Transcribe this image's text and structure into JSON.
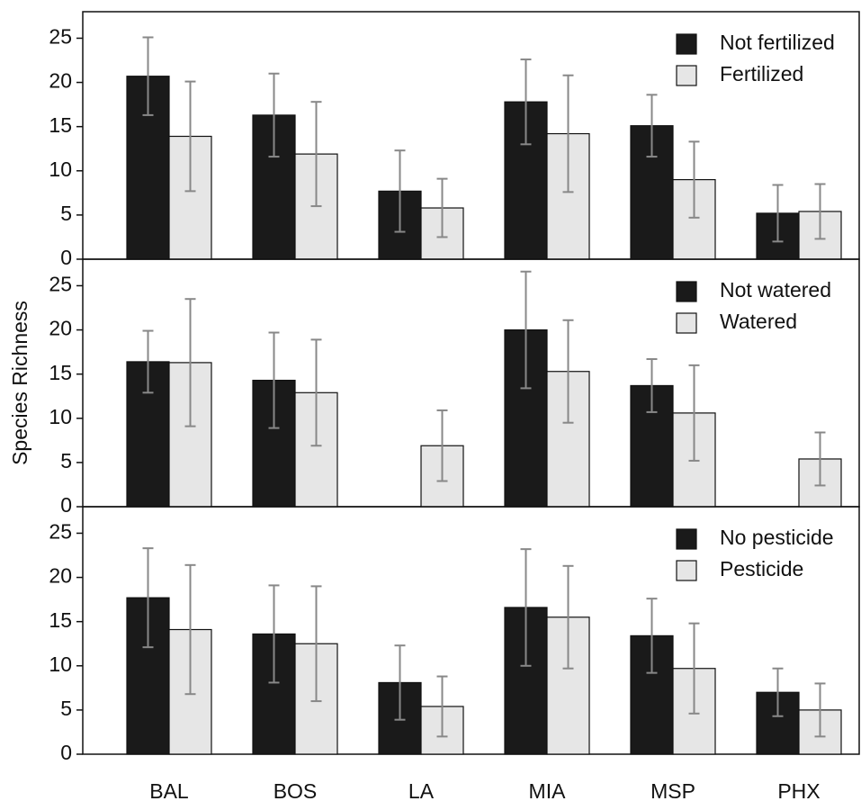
{
  "chart_data": [
    {
      "type": "bar",
      "categories": [
        "BAL",
        "BOS",
        "LA",
        "MIA",
        "MSP",
        "PHX"
      ],
      "ylim": [
        0,
        28
      ],
      "yticks": [
        0,
        5,
        10,
        15,
        20,
        25
      ],
      "legend": "upper right",
      "series": [
        {
          "name": "Not fertilized",
          "color": "#1a1a1a",
          "values": [
            20.7,
            16.3,
            7.7,
            17.8,
            15.1,
            5.2
          ],
          "errors": [
            4.4,
            4.7,
            4.6,
            4.8,
            3.5,
            3.2
          ]
        },
        {
          "name": "Fertilized",
          "color": "#e6e6e6",
          "values": [
            13.9,
            11.9,
            5.8,
            14.2,
            9.0,
            5.4
          ],
          "errors": [
            6.2,
            5.9,
            3.3,
            6.6,
            4.3,
            3.1
          ]
        }
      ]
    },
    {
      "type": "bar",
      "ylabel": "Species Richness",
      "categories": [
        "BAL",
        "BOS",
        "LA",
        "MIA",
        "MSP",
        "PHX"
      ],
      "ylim": [
        0,
        28
      ],
      "yticks": [
        0,
        5,
        10,
        15,
        20,
        25
      ],
      "legend": "upper right",
      "series": [
        {
          "name": "Not watered",
          "color": "#1a1a1a",
          "values": [
            16.4,
            14.3,
            null,
            20.0,
            13.7,
            null
          ],
          "errors": [
            3.5,
            5.4,
            null,
            6.6,
            3.0,
            null
          ]
        },
        {
          "name": "Watered",
          "color": "#e6e6e6",
          "values": [
            16.3,
            12.9,
            6.9,
            15.3,
            10.6,
            5.4
          ],
          "errors": [
            7.2,
            6.0,
            4.0,
            5.8,
            5.4,
            3.0
          ]
        }
      ]
    },
    {
      "type": "bar",
      "categories": [
        "BAL",
        "BOS",
        "LA",
        "MIA",
        "MSP",
        "PHX"
      ],
      "ylim": [
        0,
        28
      ],
      "yticks": [
        0,
        5,
        10,
        15,
        20,
        25
      ],
      "legend": "upper right",
      "series": [
        {
          "name": "No pesticide",
          "color": "#1a1a1a",
          "values": [
            17.7,
            13.6,
            8.1,
            16.6,
            13.4,
            7.0
          ],
          "errors": [
            5.6,
            5.5,
            4.2,
            6.6,
            4.2,
            2.7
          ]
        },
        {
          "name": "Pesticide",
          "color": "#e6e6e6",
          "values": [
            14.1,
            12.5,
            5.4,
            15.5,
            9.7,
            5.0
          ],
          "errors": [
            7.3,
            6.5,
            3.4,
            5.8,
            5.1,
            3.0
          ]
        }
      ]
    }
  ]
}
